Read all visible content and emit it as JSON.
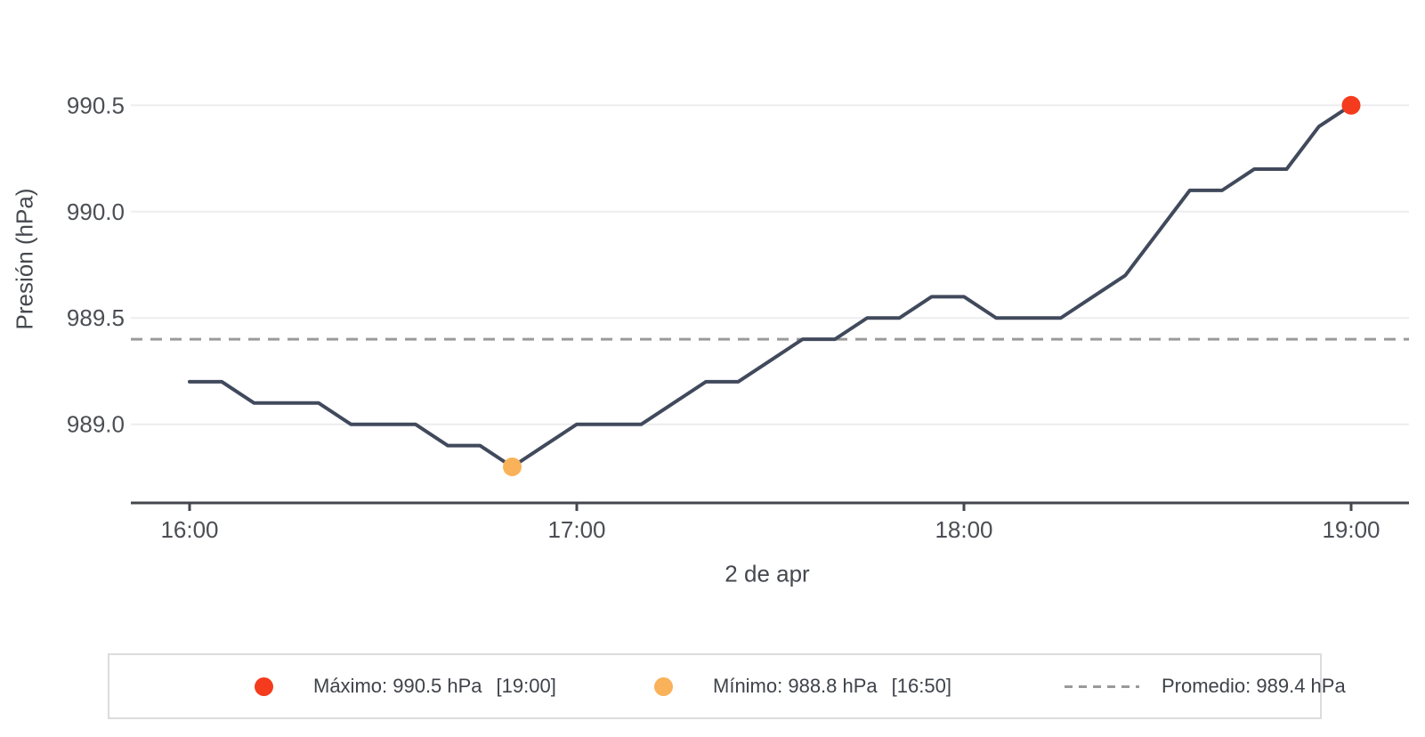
{
  "chart_data": {
    "type": "line",
    "title": "",
    "ylabel": "Presión (hPa)",
    "xlabel": "2 de apr",
    "x": [
      "16:00",
      "16:05",
      "16:10",
      "16:15",
      "16:20",
      "16:25",
      "16:30",
      "16:35",
      "16:40",
      "16:45",
      "16:50",
      "16:55",
      "17:00",
      "17:05",
      "17:10",
      "17:15",
      "17:20",
      "17:25",
      "17:30",
      "17:35",
      "17:40",
      "17:45",
      "17:50",
      "17:55",
      "18:00",
      "18:05",
      "18:10",
      "18:15",
      "18:20",
      "18:25",
      "18:30",
      "18:35",
      "18:40",
      "18:45",
      "18:50",
      "18:55",
      "19:00"
    ],
    "values": [
      989.2,
      989.2,
      989.1,
      989.1,
      989.1,
      989.0,
      989.0,
      989.0,
      988.9,
      988.9,
      988.8,
      988.9,
      989.0,
      989.0,
      989.0,
      989.1,
      989.2,
      989.2,
      989.3,
      989.4,
      989.4,
      989.5,
      989.5,
      989.6,
      989.6,
      989.5,
      989.5,
      989.5,
      989.6,
      989.7,
      989.9,
      990.1,
      990.1,
      990.2,
      990.2,
      990.4,
      990.5
    ],
    "yticks": [
      989.0,
      989.5,
      990.0,
      990.5
    ],
    "xticks": [
      "16:00",
      "17:00",
      "18:00",
      "19:00"
    ],
    "ylim": [
      988.6,
      990.75
    ],
    "grid": true,
    "legend_position": "bottom",
    "average": 989.4,
    "max": {
      "value": 990.5,
      "time": "19:00"
    },
    "min": {
      "value": 988.8,
      "time": "16:50"
    }
  },
  "legend": {
    "items": [
      {
        "label": "Máximo: 990.5 hPa",
        "time": "[19:00]",
        "marker": "dot",
        "color": "#f53b1e"
      },
      {
        "label": "Mínimo: 988.8 hPa",
        "time": "[16:50]",
        "marker": "dot",
        "color": "#f9b259"
      },
      {
        "label": "Promedio: 989.4 hPa",
        "time": "",
        "marker": "dashed-line",
        "color": "#9a9a9a"
      }
    ]
  },
  "colors": {
    "line": "#414a5c",
    "max_marker": "#f53b1e",
    "min_marker": "#f9b259",
    "average_line": "#9a9a9a",
    "grid": "#ededf0",
    "axis": "#44474c",
    "tick_text": "#4b4e54"
  }
}
